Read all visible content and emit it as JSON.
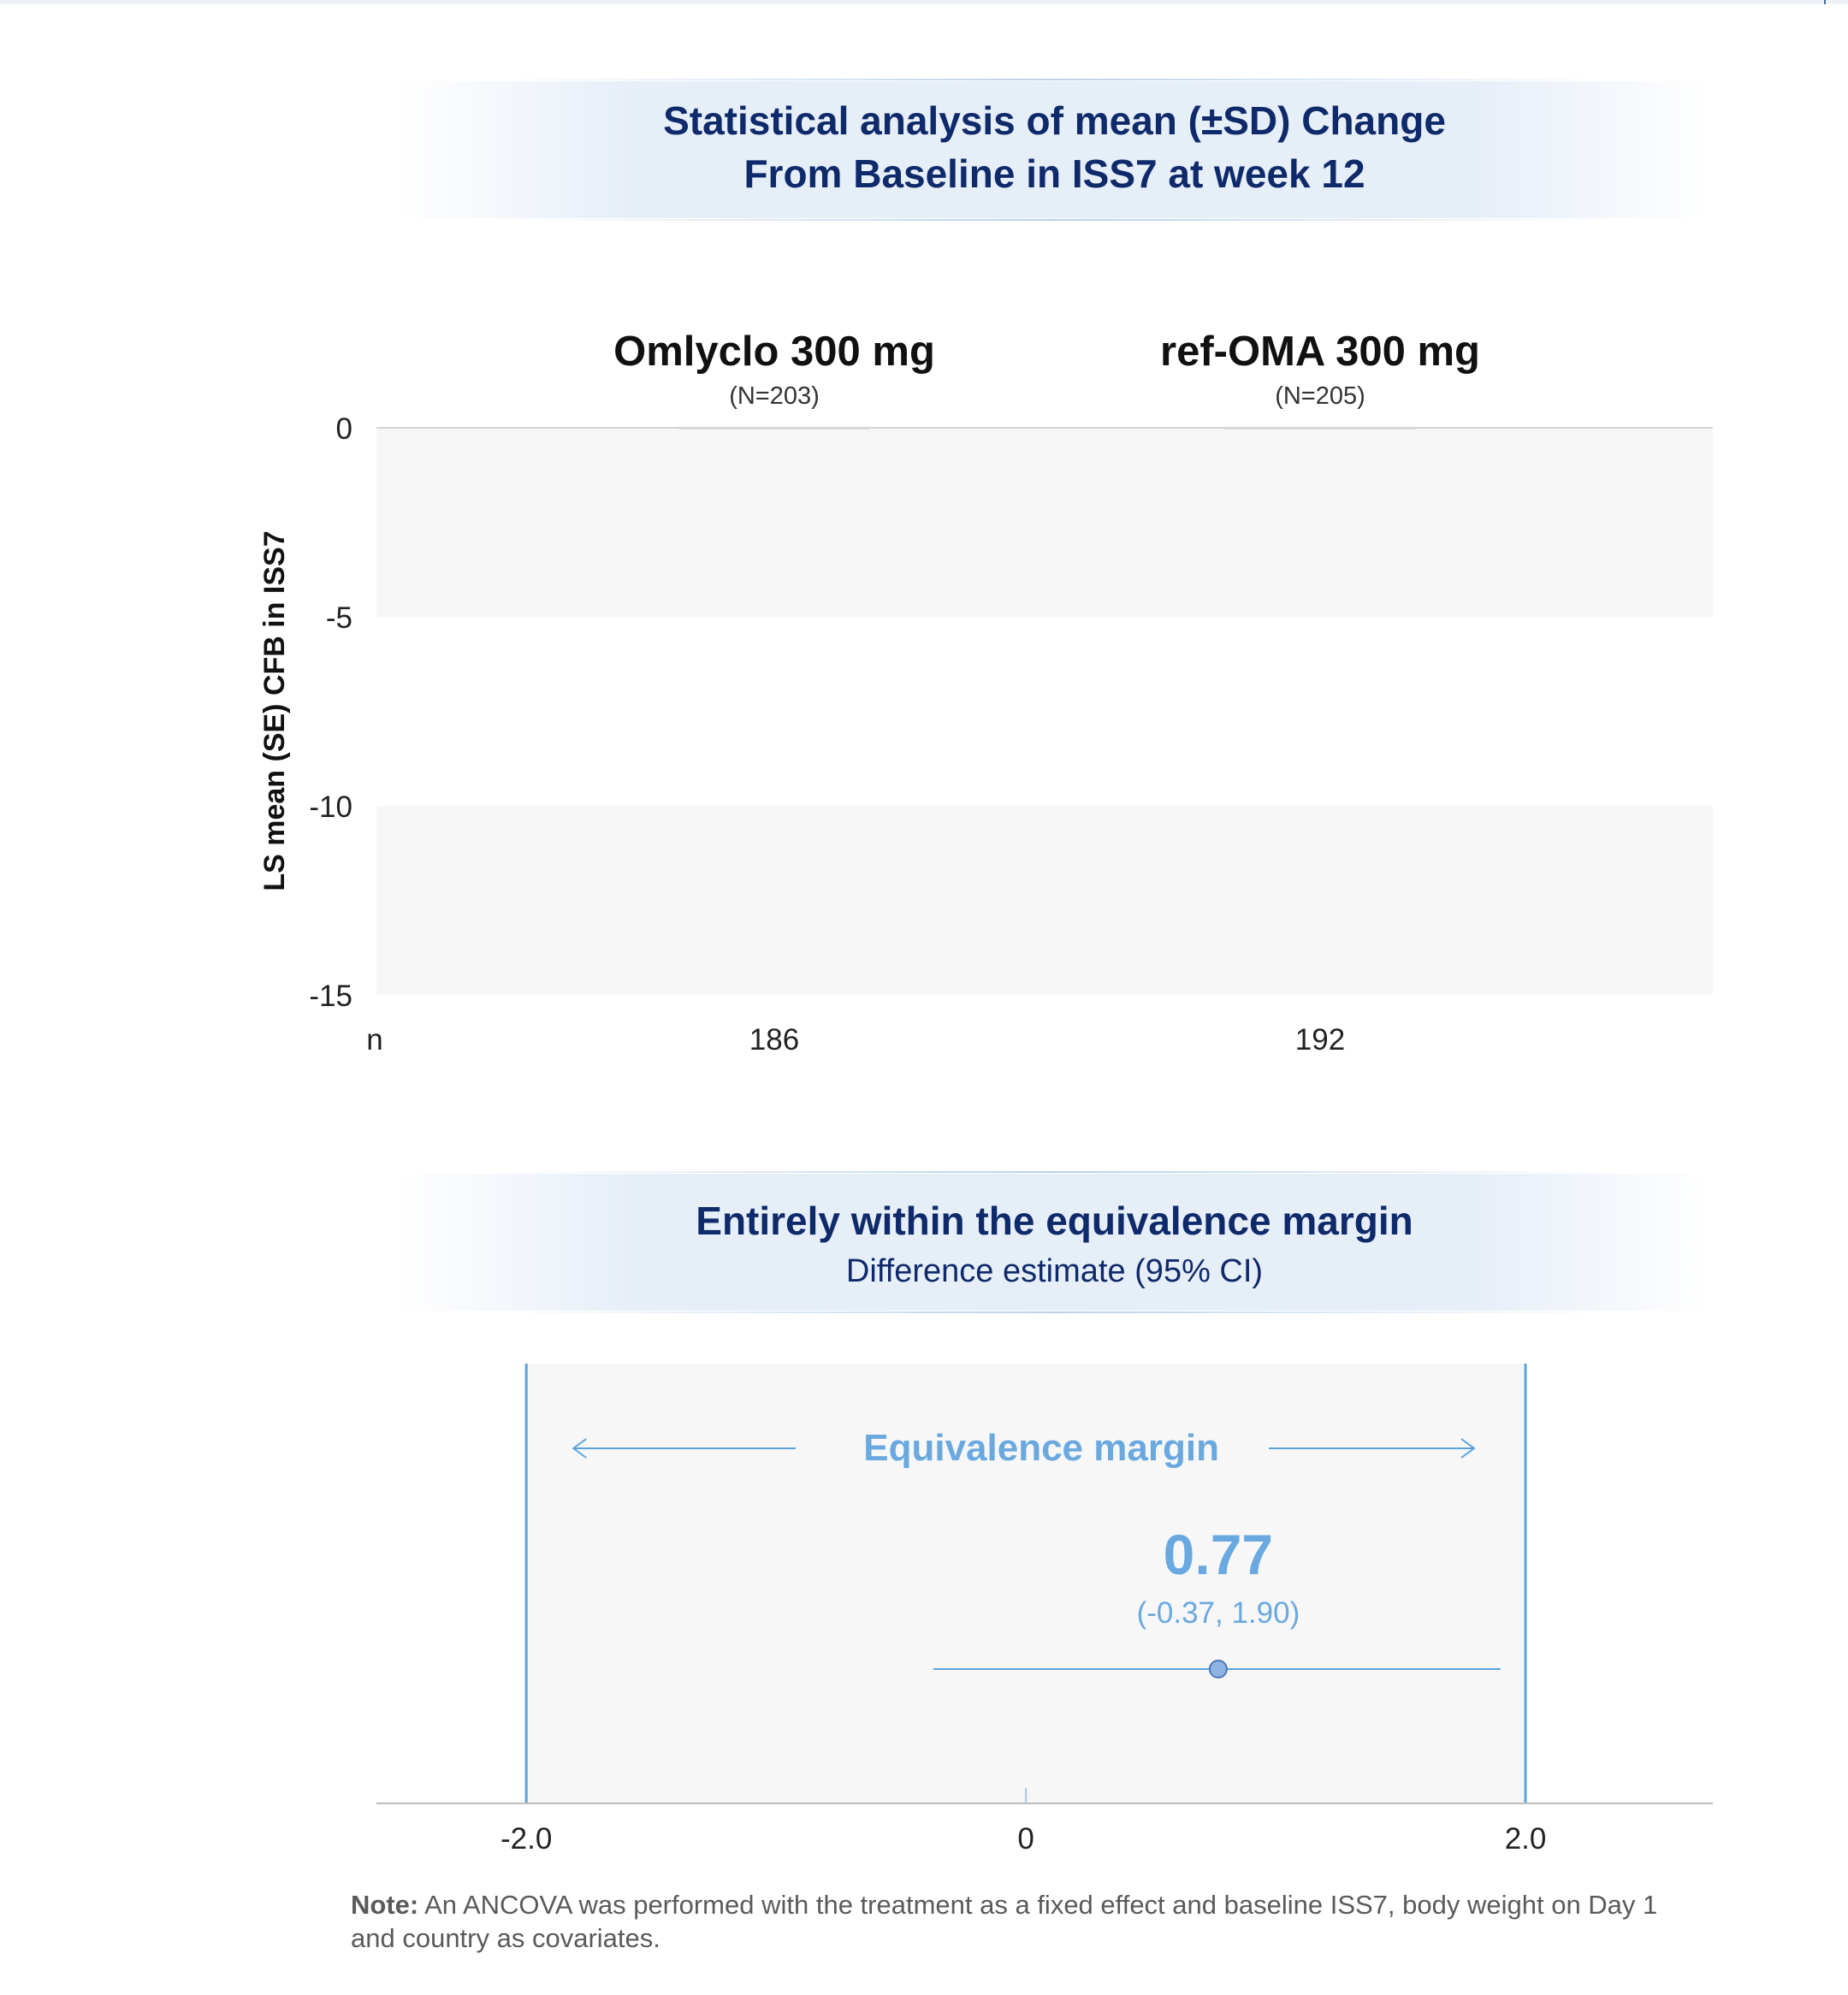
{
  "chart_data": [
    {
      "type": "bar",
      "title": "Statistical analysis of mean (±SD) Change\nFrom Baseline in ISS7 at week 12",
      "ylabel": "LS mean (SE) CFB in ISS7",
      "ylim": [
        -15,
        0
      ],
      "yticks": [
        "0",
        "-5",
        "-10",
        "-15"
      ],
      "grid": "alternating horizontal bands",
      "categories": [
        {
          "name": "Omlyclo 300 mg",
          "sub": "(N=203)",
          "n": "186"
        },
        {
          "name": "ref-OMA 300 mg",
          "sub": "(N=205)",
          "n": "192"
        }
      ],
      "n_label": "n",
      "values": [
        0,
        0
      ]
    },
    {
      "type": "scatter",
      "title": "Entirely within the equivalence margin",
      "subtitle": "Difference estimate (95% CI)",
      "margin_label": "Equivalence margin",
      "margin": [
        -2.0,
        2.0
      ],
      "xlim": [
        -2.6,
        2.75
      ],
      "xticks": [
        "-2.0",
        "0",
        "2.0"
      ],
      "estimate": 0.77,
      "estimate_label": "0.77",
      "ci": [
        -0.37,
        1.9
      ],
      "ci_label": "(-0.37, 1.90)",
      "colors": {
        "margin": "#5ba3dd",
        "point": "#8fb3e3",
        "label": "#6aa9e0"
      }
    }
  ],
  "note": {
    "bold": "Note:",
    "text": " An ANCOVA was performed with the treatment as a fixed effect and baseline ISS7, body weight on Day 1 and country as covariates."
  }
}
